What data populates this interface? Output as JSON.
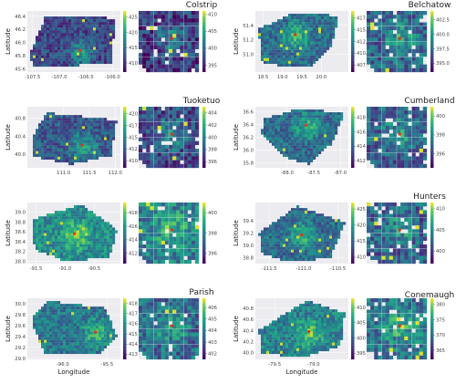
{
  "chart_data": [
    {
      "type": "heatmap",
      "title": "Colstrip",
      "ylabel": "Latitude",
      "xlabel": "",
      "xlim": [
        -107.6,
        -105.85
      ],
      "ylim": [
        45.55,
        46.48
      ],
      "xticks": [
        "-107.5",
        "-107.0",
        "-106.5",
        "-106.0"
      ],
      "xtick_values": [
        -107.5,
        -107.0,
        -106.5,
        -106.0
      ],
      "yticks": [
        "46.4",
        "46.2",
        "46.0",
        "45.8",
        "45.6"
      ],
      "ytick_values": [
        46.4,
        46.2,
        46.0,
        45.8,
        45.6
      ],
      "colorbar_full": [
        "425",
        "420",
        "415",
        "410"
      ],
      "colorbar_full_range": [
        407,
        427
      ],
      "colorbar_zoom": [
        "410",
        "405",
        "400",
        "395"
      ],
      "colorbar_zoom_range": [
        393,
        411
      ],
      "source_location": [
        -106.61,
        45.88
      ]
    },
    {
      "type": "heatmap",
      "title": "Belchatow",
      "ylabel": "Latitude",
      "xlabel": "",
      "xlim": [
        18.3,
        20.7
      ],
      "ylim": [
        50.75,
        51.6
      ],
      "xticks": [
        "18.5",
        "19.0",
        "19.5",
        "20.0"
      ],
      "xtick_values": [
        18.5,
        19.0,
        19.5,
        20.0
      ],
      "yticks": [
        "51.4",
        "51.2",
        "51.0"
      ],
      "ytick_values": [
        51.4,
        51.2,
        51.0
      ],
      "colorbar_full": [
        "417.5",
        "415.0",
        "412.5",
        "410.0",
        "407.5"
      ],
      "colorbar_full_range": [
        406,
        419
      ],
      "colorbar_zoom": [
        "402.5",
        "400.0",
        "397.5",
        "395.0"
      ],
      "colorbar_zoom_range": [
        393.5,
        404
      ],
      "source_location": [
        19.33,
        51.27
      ]
    },
    {
      "type": "heatmap",
      "title": "Tuoketuo",
      "ylabel": "Latitude",
      "xlabel": "",
      "xlim": [
        110.3,
        112.1
      ],
      "ylim": [
        39.7,
        41.05
      ],
      "xticks": [
        "111.0",
        "111.5",
        "112.0"
      ],
      "xtick_values": [
        111.0,
        111.5,
        112.0
      ],
      "yticks": [
        "40.8",
        "40.4",
        "40.0"
      ],
      "ytick_values": [
        40.8,
        40.4,
        40.0
      ],
      "colorbar_full": [
        "420.0",
        "417.5",
        "415.0",
        "412.5",
        "410.0"
      ],
      "colorbar_full_range": [
        408.5,
        421.5
      ],
      "colorbar_zoom": [
        "404",
        "402",
        "400",
        "398",
        "396"
      ],
      "colorbar_zoom_range": [
        395,
        405
      ],
      "source_location": [
        111.36,
        40.2
      ]
    },
    {
      "type": "heatmap",
      "title": "Cumberland",
      "ylabel": "Latitude",
      "xlabel": "",
      "xlim": [
        -88.6,
        -86.85
      ],
      "ylim": [
        35.72,
        36.68
      ],
      "xticks": [
        "-88.0",
        "-87.5",
        "-87.0"
      ],
      "xtick_values": [
        -88.0,
        -87.5,
        -87.0
      ],
      "yticks": [
        "36.6",
        "36.4",
        "36.2",
        "36.0",
        "35.8"
      ],
      "ytick_values": [
        36.6,
        36.4,
        36.2,
        36.0,
        35.8
      ],
      "colorbar_full": [
        "418",
        "416",
        "414",
        "412"
      ],
      "colorbar_full_range": [
        411,
        419.5
      ],
      "colorbar_zoom": [
        "400",
        "398",
        "396"
      ],
      "colorbar_zoom_range": [
        394.5,
        401
      ],
      "source_location": [
        -87.65,
        36.39
      ]
    },
    {
      "type": "heatmap",
      "title": "",
      "ylabel": "Latitude",
      "xlabel": "",
      "xlim": [
        -91.65,
        -90.05
      ],
      "ylim": [
        37.95,
        39.2
      ],
      "xticks": [
        "-91.5",
        "-91.0",
        "-90.5"
      ],
      "xtick_values": [
        -91.5,
        -91.0,
        -90.5
      ],
      "yticks": [
        "39.0",
        "38.8",
        "38.6",
        "38.4",
        "38.2",
        "38.0"
      ],
      "ytick_values": [
        39.0,
        38.8,
        38.6,
        38.4,
        38.2,
        38.0
      ],
      "colorbar_full": [
        "418",
        "416",
        "414",
        "412"
      ],
      "colorbar_full_range": [
        410.5,
        419.5
      ],
      "colorbar_zoom": [
        "400",
        "398",
        "396"
      ],
      "colorbar_zoom_range": [
        395,
        401
      ],
      "source_location": [
        -90.84,
        38.56
      ]
    },
    {
      "type": "heatmap",
      "title": "Hunters",
      "ylabel": "Latitude",
      "xlabel": "",
      "xlim": [
        -111.7,
        -110.35
      ],
      "ylim": [
        38.7,
        39.7
      ],
      "xticks": [
        "-111.5",
        "-111.0",
        "-110.5"
      ],
      "xtick_values": [
        -111.5,
        -111.0,
        -110.5
      ],
      "yticks": [
        "39.4",
        "39.2",
        "39.0",
        "38.8"
      ],
      "ytick_values": [
        39.4,
        39.2,
        39.0,
        38.8
      ],
      "colorbar_full": [
        "425",
        "420",
        "415",
        "410"
      ],
      "colorbar_full_range": [
        408,
        427
      ],
      "colorbar_zoom": [
        "410",
        "405",
        "400"
      ],
      "colorbar_zoom_range": [
        397,
        411.5
      ],
      "source_location": [
        -111.03,
        39.17
      ]
    },
    {
      "type": "heatmap",
      "title": "Parish",
      "ylabel": "Latitude",
      "xlabel": "Longitude",
      "xlim": [
        -96.4,
        -95.35
      ],
      "ylim": [
        28.98,
        30.1
      ],
      "xticks": [
        "-96.0",
        "-95.5"
      ],
      "xtick_values": [
        -96.0,
        -95.5
      ],
      "yticks": [
        "30.0",
        "29.8",
        "29.6",
        "29.4",
        "29.2",
        "29.0"
      ],
      "ytick_values": [
        30.0,
        29.8,
        29.6,
        29.4,
        29.2,
        29.0
      ],
      "colorbar_full": [
        "418",
        "417",
        "416",
        "415",
        "414",
        "413"
      ],
      "colorbar_full_range": [
        412.5,
        418.5
      ],
      "colorbar_zoom": [
        "406",
        "405",
        "404",
        "403",
        "402"
      ],
      "colorbar_zoom_range": [
        401.5,
        406.8
      ],
      "source_location": [
        -95.63,
        29.48
      ]
    },
    {
      "type": "heatmap",
      "title": "Conemaugh",
      "ylabel": "Latitude",
      "xlabel": "Longitude",
      "xlim": [
        -79.75,
        -78.55
      ],
      "ylim": [
        39.88,
        40.98
      ],
      "xticks": [
        "-79.5",
        "-79.0"
      ],
      "xtick_values": [
        -79.5,
        -79.0
      ],
      "yticks": [
        "40.8",
        "40.6",
        "40.4",
        "40.2",
        "40.0"
      ],
      "ytick_values": [
        40.8,
        40.6,
        40.4,
        40.2,
        40.0
      ],
      "colorbar_full": [
        "410",
        "405",
        "400",
        "395"
      ],
      "colorbar_full_range": [
        393,
        413
      ],
      "colorbar_zoom": [
        "380",
        "375",
        "370",
        "365"
      ],
      "colorbar_zoom_range": [
        362,
        382
      ],
      "source_location": [
        -79.06,
        40.38
      ]
    }
  ]
}
